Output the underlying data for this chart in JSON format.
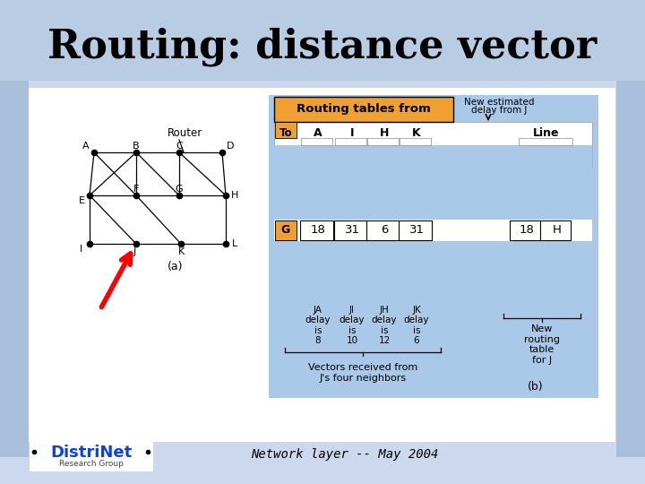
{
  "title": "Routing: distance vector",
  "subtitle": "Network layer -- May 2004",
  "bg_color_top": "#b0c4e0",
  "bg_color_bot": "#ccdcf4",
  "title_fontsize": 32,
  "routing_header": "Routing tables from",
  "new_est_line1": "New estimated",
  "new_est_line2": "delay from J",
  "col_headers_left": [
    "A",
    "I",
    "H",
    "K"
  ],
  "col_header_line": "Line",
  "row_g_vals_left": [
    "18",
    "31",
    "6",
    "31"
  ],
  "row_g_vals_right": [
    "18",
    "H"
  ],
  "bottom_labels": [
    "JA\ndelay\nis\n8",
    "JI\ndelay\nis\n10",
    "JH\ndelay\nis\n12",
    "JK\ndelay\nis\n6"
  ],
  "vectors_label": "Vectors received from\nJ's four neighbors",
  "new_routing_label": "New\nrouting\ntable\nfor J",
  "label_a": "(a)",
  "label_b": "(b)",
  "orange_color": "#f0a030",
  "blue_bg": "#aac8e8",
  "white": "#ffffff",
  "black": "#000000"
}
